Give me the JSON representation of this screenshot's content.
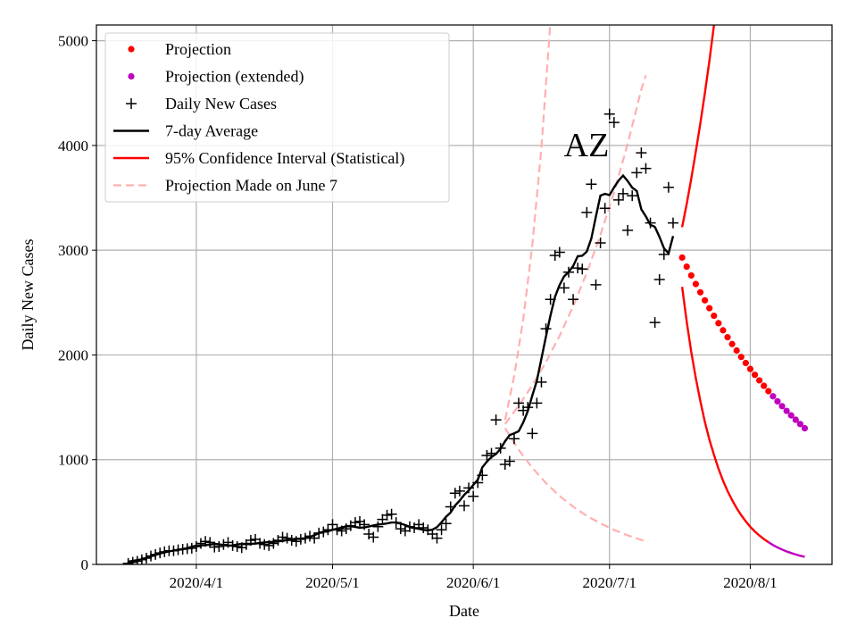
{
  "chart_data": {
    "type": "line",
    "title": "AZ",
    "xlabel": "Date",
    "ylabel": "Daily New Cases",
    "xlim": [
      "2020-03-10",
      "2020-08-19"
    ],
    "ylim": [
      0,
      5150
    ],
    "grid": true,
    "legend_position": "top-left",
    "x_ticks": [
      {
        "date": "2020-04-01",
        "label": "2020/4/1"
      },
      {
        "date": "2020-05-01",
        "label": "2020/5/1"
      },
      {
        "date": "2020-06-01",
        "label": "2020/6/1"
      },
      {
        "date": "2020-07-01",
        "label": "2020/7/1"
      },
      {
        "date": "2020-08-01",
        "label": "2020/8/1"
      }
    ],
    "y_ticks": [
      0,
      1000,
      2000,
      3000,
      4000,
      5000
    ],
    "legend": [
      {
        "label": "Projection",
        "style": "dot",
        "color": "#ff0000"
      },
      {
        "label": "Projection (extended)",
        "style": "dot",
        "color": "#bf00bf"
      },
      {
        "label": "Daily New Cases",
        "style": "plus",
        "color": "#000000"
      },
      {
        "label": "7-day Average",
        "style": "line",
        "color": "#000000"
      },
      {
        "label": "95% Confidence Interval (Statistical)",
        "style": "line",
        "color": "#ff0000"
      },
      {
        "label": "Projection Made on June 7",
        "style": "dash",
        "color": "#ffb0b0"
      }
    ],
    "daily_new_cases": {
      "start": "2020-03-17",
      "values": [
        10,
        20,
        30,
        45,
        60,
        80,
        95,
        110,
        120,
        130,
        130,
        140,
        145,
        150,
        155,
        170,
        200,
        220,
        210,
        165,
        170,
        190,
        210,
        180,
        170,
        160,
        190,
        230,
        240,
        200,
        190,
        180,
        200,
        230,
        260,
        250,
        230,
        220,
        240,
        250,
        270,
        250,
        300,
        310,
        330,
        380,
        330,
        320,
        340,
        370,
        400,
        410,
        380,
        290,
        260,
        360,
        430,
        470,
        480,
        400,
        340,
        320,
        360,
        350,
        380,
        350,
        330,
        290,
        250,
        330,
        390,
        550,
        680,
        700,
        560,
        730,
        650,
        780,
        850,
        1040,
        1060,
        1380,
        1110,
        955,
        985,
        1200,
        1540,
        1470,
        1500,
        1250,
        1540,
        1740,
        2250,
        2530,
        2950,
        2980,
        2640,
        2790,
        2530,
        2830,
        2820,
        3360,
        3630,
        2670,
        3070,
        3400,
        4300,
        4220,
        3480,
        3540,
        3190,
        3520,
        3740,
        3930,
        3780,
        3260,
        2310,
        2720,
        2960,
        3600,
        3260
      ]
    },
    "seven_day_average_window": 7,
    "projection": {
      "start": "2020-07-17",
      "values": [
        2930,
        2843,
        2759,
        2677,
        2598,
        2521,
        2446,
        2374,
        2303,
        2235,
        2169,
        2104,
        2042,
        1981,
        1923,
        1866,
        1810,
        1757,
        1705,
        1654
      ]
    },
    "projection_extended": {
      "start": "2020-08-06",
      "values": [
        1605,
        1557,
        1511,
        1466,
        1423,
        1381,
        1340,
        1300
      ]
    },
    "ci_upper": {
      "start": "2020-07-17",
      "values": [
        3220,
        3440,
        3680,
        3940,
        4210,
        4500,
        4810,
        5150
      ]
    },
    "ci_lower": {
      "start": "2020-07-17",
      "values": [
        2650,
        2320,
        2030,
        1780,
        1560,
        1360,
        1190,
        1045,
        915,
        800,
        700,
        615,
        537,
        470,
        412,
        360,
        315,
        276,
        242,
        212
      ]
    },
    "ci_lower_extended": {
      "start": "2020-08-05",
      "values": [
        212,
        185,
        162,
        142,
        124,
        109,
        95,
        83,
        73
      ]
    },
    "june7_projection": [
      {
        "name": "upper",
        "points": [
          [
            "2020-06-08",
            1380
          ],
          [
            "2020-06-10",
            1800
          ],
          [
            "2020-06-12",
            2340
          ],
          [
            "2020-06-14",
            3050
          ],
          [
            "2020-06-16",
            3980
          ],
          [
            "2020-06-18",
            5180
          ]
        ]
      },
      {
        "name": "central",
        "points": [
          [
            "2020-06-08",
            1340
          ],
          [
            "2020-06-11",
            1514
          ],
          [
            "2020-06-14",
            1710
          ],
          [
            "2020-06-17",
            1932
          ],
          [
            "2020-06-20",
            2182
          ],
          [
            "2020-06-23",
            2465
          ],
          [
            "2020-06-26",
            2785
          ],
          [
            "2020-06-29",
            3146
          ],
          [
            "2020-07-02",
            3554
          ],
          [
            "2020-07-05",
            4015
          ],
          [
            "2020-07-08",
            4535
          ],
          [
            "2020-07-09",
            4670
          ]
        ]
      },
      {
        "name": "lower",
        "points": [
          [
            "2020-06-08",
            1300
          ],
          [
            "2020-06-11",
            1095
          ],
          [
            "2020-06-14",
            922
          ],
          [
            "2020-06-17",
            777
          ],
          [
            "2020-06-20",
            654
          ],
          [
            "2020-06-23",
            551
          ],
          [
            "2020-06-26",
            464
          ],
          [
            "2020-06-29",
            391
          ],
          [
            "2020-07-02",
            329
          ],
          [
            "2020-07-05",
            277
          ],
          [
            "2020-07-08",
            234
          ],
          [
            "2020-07-09",
            221
          ]
        ]
      }
    ]
  }
}
